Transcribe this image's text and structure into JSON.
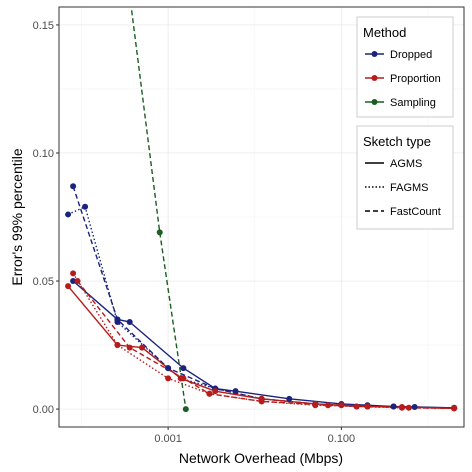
{
  "chart_data": {
    "type": "line",
    "xlabel": "Network Overhead (Mbps)",
    "ylabel": "Error's 99% percentile",
    "x_scale": "log",
    "xlim": [
      5.5e-05,
      2.6
    ],
    "ylim": [
      -0.007,
      0.157
    ],
    "x_ticks": [
      {
        "value": 0.001,
        "label": "0.001"
      },
      {
        "value": 0.1,
        "label": "0.100"
      }
    ],
    "y_ticks": [
      {
        "value": 0.0,
        "label": "0.00"
      },
      {
        "value": 0.05,
        "label": "0.05"
      },
      {
        "value": 0.1,
        "label": "0.10"
      },
      {
        "value": 0.15,
        "label": "0.15"
      }
    ],
    "grid": true,
    "legend": {
      "placement": "top-right",
      "method": {
        "title": "Method",
        "entries": [
          {
            "label": "Dropped",
            "color": "#1a237e"
          },
          {
            "label": "Proportion",
            "color": "#b71c1c"
          },
          {
            "label": "Sampling",
            "color": "#1b5e20"
          }
        ]
      },
      "sketch": {
        "title": "Sketch type",
        "entries": [
          {
            "label": "AGMS",
            "linetype": "solid"
          },
          {
            "label": "FAGMS",
            "linetype": "dotted"
          },
          {
            "label": "FastCount",
            "linetype": "dashed"
          }
        ]
      }
    },
    "series": [
      {
        "method": "Dropped",
        "sketch": "AGMS",
        "color": "#1a237e",
        "linetype": "solid",
        "x": [
          8e-05,
          0.00026,
          0.00036,
          0.0015,
          0.0035,
          0.006,
          0.025,
          0.1,
          0.2,
          0.4,
          2.0
        ],
        "y": [
          0.05,
          0.035,
          0.034,
          0.016,
          0.008,
          0.007,
          0.004,
          0.002,
          0.0015,
          0.001,
          0.0005
        ]
      },
      {
        "method": "Dropped",
        "sketch": "FAGMS",
        "color": "#1a237e",
        "linetype": "dotted",
        "x": [
          7e-05,
          0.00011,
          0.00026,
          0.001,
          0.0014,
          0.0035,
          0.012,
          0.05,
          0.15,
          0.4,
          2.0
        ],
        "y": [
          0.076,
          0.079,
          0.034,
          0.016,
          0.012,
          0.008,
          0.004,
          0.002,
          0.001,
          0.001,
          0.0003
        ]
      },
      {
        "method": "Dropped",
        "sketch": "FastCount",
        "color": "#1a237e",
        "linetype": "dashed",
        "x": [
          8e-05,
          0.00026,
          0.001,
          0.0035,
          0.012,
          0.05,
          0.2,
          0.7,
          2.0
        ],
        "y": [
          0.087,
          0.035,
          0.016,
          0.008,
          0.004,
          0.002,
          0.001,
          0.0008,
          0.0003
        ]
      },
      {
        "method": "Proportion",
        "sketch": "AGMS",
        "color": "#b71c1c",
        "linetype": "solid",
        "x": [
          7e-05,
          0.00026,
          0.0005,
          0.0014,
          0.0035,
          0.012,
          0.05,
          0.1,
          0.2,
          0.5,
          2.0
        ],
        "y": [
          0.048,
          0.025,
          0.024,
          0.012,
          0.007,
          0.004,
          0.002,
          0.0015,
          0.001,
          0.0008,
          0.0003
        ]
      },
      {
        "method": "Proportion",
        "sketch": "FAGMS",
        "color": "#b71c1c",
        "linetype": "dotted",
        "x": [
          8e-05,
          0.00026,
          0.001,
          0.003,
          0.012,
          0.05,
          0.15,
          0.5,
          2.0
        ],
        "y": [
          0.053,
          0.025,
          0.012,
          0.006,
          0.003,
          0.0015,
          0.001,
          0.0005,
          0.0003
        ]
      },
      {
        "method": "Proportion",
        "sketch": "FastCount",
        "color": "#b71c1c",
        "linetype": "dashed",
        "x": [
          9e-05,
          0.00036,
          0.0015,
          0.003,
          0.012,
          0.07,
          0.2,
          0.6,
          2.0
        ],
        "y": [
          0.05,
          0.024,
          0.012,
          0.006,
          0.003,
          0.0015,
          0.001,
          0.0005,
          0.0003
        ]
      },
      {
        "method": "Sampling",
        "sketch": "FastCount",
        "color": "#1b5e20",
        "linetype": "dashed",
        "x": [
          0.00035,
          0.0008,
          0.0016
        ],
        "y": [
          0.165,
          0.069,
          0.0
        ]
      }
    ]
  }
}
